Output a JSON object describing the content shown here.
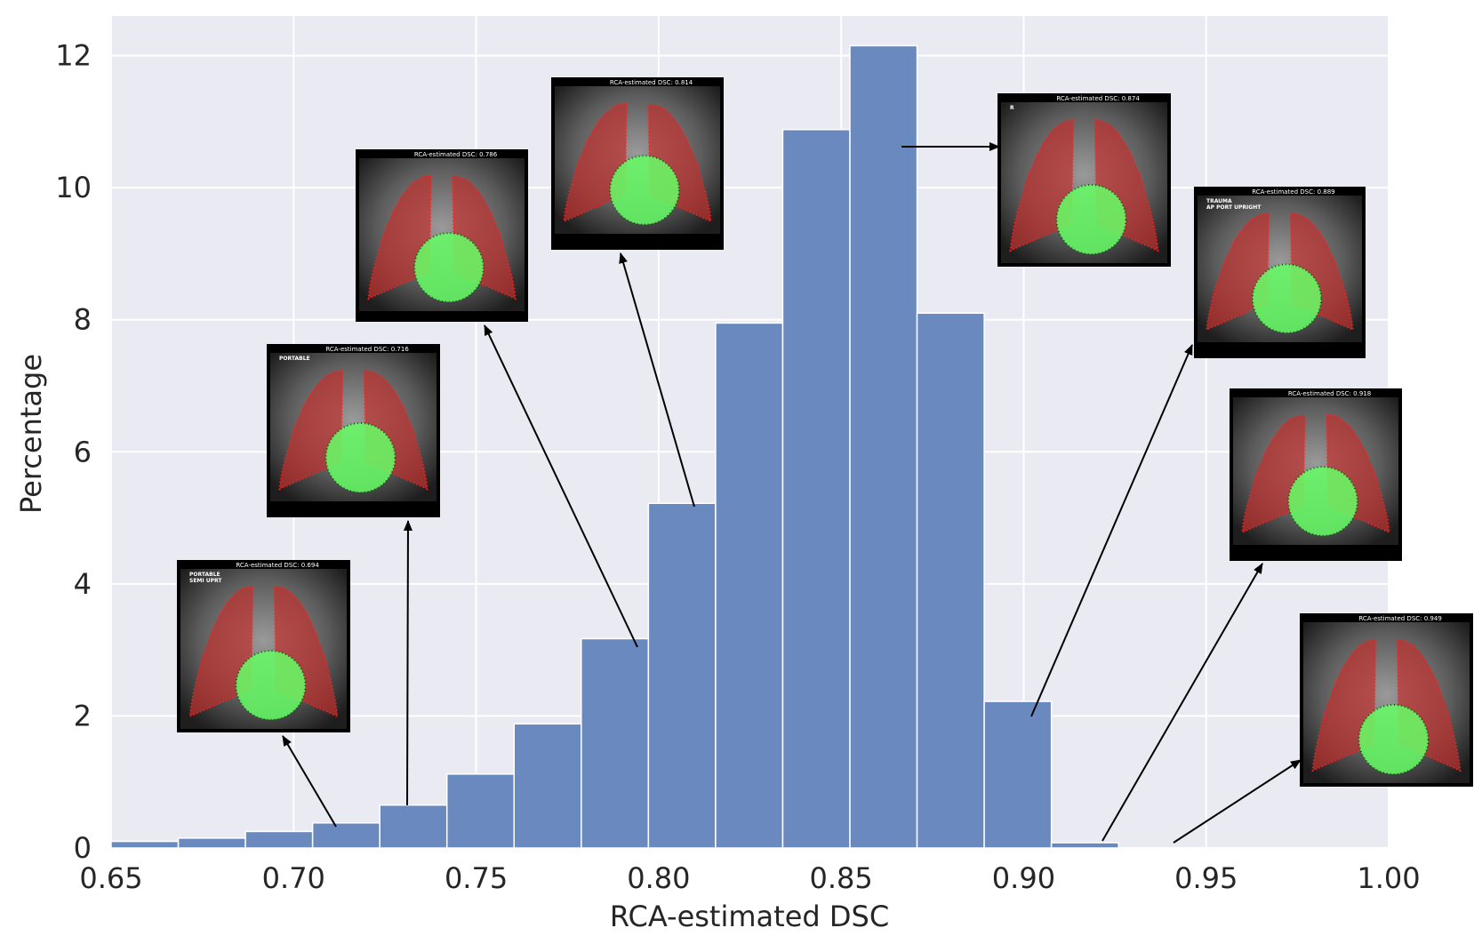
{
  "chart_data": {
    "type": "bar",
    "subtype": "histogram",
    "xlabel": "RCA-estimated DSC",
    "ylabel": "Percentage",
    "xlim": [
      0.65,
      1.0
    ],
    "ylim": [
      0,
      12.6
    ],
    "xticks": [
      "0.65",
      "0.70",
      "0.75",
      "0.80",
      "0.85",
      "0.90",
      "0.95",
      "1.00"
    ],
    "yticks": [
      "0",
      "2",
      "4",
      "6",
      "8",
      "10",
      "12"
    ],
    "grid": true,
    "bins": [
      {
        "x0": 0.65,
        "x1": 0.6684,
        "value": 0.1
      },
      {
        "x0": 0.6684,
        "x1": 0.6868,
        "value": 0.15
      },
      {
        "x0": 0.6868,
        "x1": 0.7052,
        "value": 0.25
      },
      {
        "x0": 0.7052,
        "x1": 0.7236,
        "value": 0.38
      },
      {
        "x0": 0.7236,
        "x1": 0.742,
        "value": 0.65
      },
      {
        "x0": 0.742,
        "x1": 0.7604,
        "value": 1.12
      },
      {
        "x0": 0.7604,
        "x1": 0.7788,
        "value": 1.88
      },
      {
        "x0": 0.7788,
        "x1": 0.7972,
        "value": 3.17
      },
      {
        "x0": 0.7972,
        "x1": 0.8156,
        "value": 5.22
      },
      {
        "x0": 0.8156,
        "x1": 0.834,
        "value": 7.95
      },
      {
        "x0": 0.834,
        "x1": 0.8524,
        "value": 10.88
      },
      {
        "x0": 0.8524,
        "x1": 0.8708,
        "value": 12.15
      },
      {
        "x0": 0.8708,
        "x1": 0.8892,
        "value": 8.1
      },
      {
        "x0": 0.8892,
        "x1": 0.9076,
        "value": 2.22
      },
      {
        "x0": 0.9076,
        "x1": 0.926,
        "value": 0.08
      }
    ],
    "annotations": [
      {
        "caption": "RCA-estimated DSC: 0.694",
        "tags": [
          "PORTABLE",
          "SEMI UPRT"
        ]
      },
      {
        "caption": "RCA-estimated DSC: 0.716",
        "tags": [
          "PORTABLE"
        ]
      },
      {
        "caption": "RCA-estimated DSC: 0.786",
        "tags": []
      },
      {
        "caption": "RCA-estimated DSC: 0.814",
        "tags": []
      },
      {
        "caption": "RCA-estimated DSC: 0.874",
        "tags": [
          "R"
        ]
      },
      {
        "caption": "RCA-estimated DSC: 0.889",
        "tags": [
          "TRAUMA",
          "AP PORT UPRIGHT"
        ]
      },
      {
        "caption": "RCA-estimated DSC: 0.918",
        "tags": []
      },
      {
        "caption": "RCA-estimated DSC: 0.949",
        "tags": []
      }
    ],
    "colors": {
      "background": "#eaeaf2",
      "bar": "#6a89bf",
      "bar_edge": "#ffffff",
      "grid": "#ffffff",
      "text": "#262626",
      "lung_overlay": "#c0302f",
      "heart_overlay": "#66ff66"
    }
  }
}
